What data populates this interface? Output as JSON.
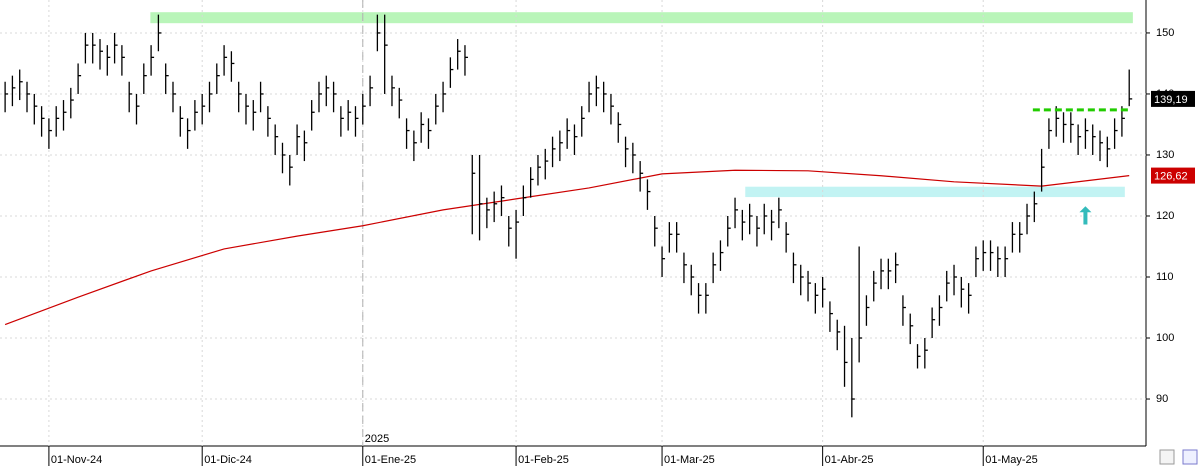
{
  "chart_data": {
    "type": "ohlc",
    "color": "#000000",
    "categories": [
      null,
      null,
      null,
      null,
      null,
      null,
      "01-Nov-24",
      null,
      null,
      null,
      null,
      null,
      null,
      null,
      null,
      null,
      null,
      null,
      null,
      null,
      null,
      null,
      null,
      null,
      null,
      null,
      null,
      "01-Dic-24",
      null,
      null,
      null,
      null,
      null,
      null,
      null,
      null,
      null,
      null,
      null,
      null,
      null,
      null,
      null,
      null,
      null,
      null,
      null,
      null,
      null,
      "01-Ene-25",
      null,
      null,
      null,
      null,
      null,
      null,
      null,
      null,
      null,
      null,
      null,
      null,
      null,
      null,
      null,
      null,
      null,
      null,
      null,
      null,
      "01-Feb-25",
      null,
      null,
      null,
      null,
      null,
      null,
      null,
      null,
      null,
      null,
      null,
      null,
      null,
      null,
      null,
      null,
      null,
      null,
      null,
      "01-Mar-25",
      null,
      null,
      null,
      null,
      null,
      null,
      null,
      null,
      null,
      null,
      null,
      null,
      null,
      null,
      null,
      null,
      null,
      null,
      null,
      null,
      null,
      "01-Abr-25",
      null,
      null,
      null,
      null,
      null,
      null,
      null,
      null,
      null,
      null,
      null,
      null,
      null,
      null,
      null,
      null,
      null,
      null,
      null,
      null,
      null,
      "01-May-25",
      null,
      null,
      null,
      null,
      null,
      null,
      null,
      null,
      null,
      null,
      null,
      null,
      null,
      null,
      null,
      null,
      null,
      null,
      null,
      null
    ],
    "high": [
      142,
      143,
      144,
      142,
      140,
      138,
      136,
      138,
      139,
      141,
      145,
      150,
      150,
      149,
      148,
      150,
      148,
      142,
      140,
      145,
      148,
      153,
      145,
      142,
      138,
      136,
      139,
      140,
      142,
      145,
      148,
      147,
      142,
      140,
      139,
      142,
      138,
      135,
      132,
      130,
      135,
      134,
      139,
      142,
      143,
      142,
      138,
      139,
      138,
      140,
      143,
      153,
      153,
      143,
      141,
      136,
      134,
      137,
      136,
      140,
      142,
      146,
      149,
      148,
      130,
      130,
      123,
      124,
      125,
      120,
      121,
      125,
      128,
      130,
      131,
      133,
      134,
      136,
      135,
      138,
      142,
      143,
      142,
      140,
      137,
      133,
      132,
      129,
      126,
      120,
      115,
      119,
      119,
      114,
      112,
      109,
      109,
      114,
      116,
      120,
      123,
      121,
      122,
      120,
      122,
      121,
      123,
      119,
      114,
      112,
      111,
      109,
      110,
      106,
      103,
      102,
      100,
      115,
      107,
      111,
      113,
      113,
      114,
      107,
      104,
      99,
      100,
      105,
      107,
      111,
      112,
      110,
      109,
      115,
      116,
      116,
      115,
      115,
      119,
      119,
      122,
      124,
      131,
      136,
      138,
      137,
      137,
      135,
      136,
      135,
      134,
      133,
      136,
      138,
      144
    ],
    "low": [
      137,
      138,
      139,
      137,
      135,
      133,
      131,
      133,
      134,
      136,
      140,
      145,
      145,
      144,
      143,
      145,
      143,
      137,
      135,
      140,
      143,
      147,
      140,
      137,
      133,
      131,
      134,
      135,
      137,
      140,
      143,
      142,
      137,
      135,
      134,
      137,
      133,
      130,
      127,
      125,
      130,
      129,
      134,
      137,
      138,
      137,
      133,
      134,
      133,
      135,
      138,
      147,
      140,
      138,
      136,
      131,
      129,
      132,
      131,
      135,
      137,
      141,
      144,
      143,
      117,
      116,
      118,
      119,
      120,
      115,
      113,
      120,
      123,
      125,
      126,
      128,
      129,
      131,
      130,
      133,
      137,
      138,
      137,
      135,
      132,
      128,
      127,
      124,
      121,
      115,
      110,
      114,
      114,
      109,
      107,
      104,
      104,
      109,
      111,
      115,
      118,
      116,
      117,
      115,
      117,
      116,
      118,
      114,
      109,
      107,
      106,
      104,
      105,
      101,
      98,
      92,
      87,
      96,
      102,
      106,
      108,
      108,
      109,
      102,
      99,
      95,
      95,
      100,
      102,
      106,
      107,
      105,
      104,
      110,
      111,
      111,
      110,
      110,
      114,
      114,
      117,
      119,
      124,
      131,
      133,
      132,
      132,
      130,
      131,
      130,
      129,
      128,
      131,
      133,
      138
    ],
    "close": [
      140,
      141,
      142,
      140,
      138,
      136,
      134,
      136,
      137,
      139,
      143,
      148,
      148,
      147,
      146,
      148,
      146,
      140,
      138,
      143,
      146,
      150,
      143,
      140,
      136,
      134,
      137,
      138,
      140,
      143,
      146,
      145,
      140,
      138,
      137,
      140,
      136,
      133,
      130,
      128,
      133,
      132,
      137,
      140,
      141,
      140,
      136,
      137,
      136,
      138,
      141,
      150,
      148,
      141,
      139,
      134,
      132,
      135,
      134,
      138,
      140,
      144,
      147,
      146,
      127,
      122,
      121,
      122,
      123,
      118,
      119,
      123,
      126,
      128,
      129,
      131,
      132,
      134,
      133,
      136,
      140,
      141,
      140,
      138,
      135,
      131,
      130,
      127,
      124,
      118,
      113,
      117,
      117,
      112,
      110,
      107,
      107,
      112,
      114,
      118,
      121,
      119,
      120,
      118,
      120,
      119,
      121,
      117,
      112,
      110,
      109,
      107,
      108,
      104,
      101,
      96,
      90,
      100,
      105,
      109,
      111,
      111,
      112,
      105,
      102,
      97,
      98,
      103,
      105,
      109,
      110,
      108,
      107,
      113,
      114,
      114,
      113,
      113,
      117,
      117,
      120,
      122,
      128,
      134,
      136,
      135,
      135,
      133,
      134,
      133,
      132,
      131,
      134,
      136,
      139.19
    ],
    "last_close_label": "139,19",
    "moving_average": {
      "color": "#cc0000",
      "x": [
        0,
        10,
        20,
        30,
        40,
        49,
        60,
        70,
        80,
        90,
        100,
        110,
        120,
        130,
        142,
        154
      ],
      "values": [
        102.2,
        106.7,
        111,
        114.6,
        116.7,
        118.4,
        121,
        122.8,
        124.6,
        126.9,
        127.5,
        127.4,
        126.6,
        125.6,
        124.9,
        126.62
      ],
      "value_label": "126,62"
    },
    "year_marker": {
      "index": 49,
      "label": "2025"
    },
    "xlim": [
      -0.7,
      156.3
    ],
    "ylim": [
      82.3,
      155.4
    ],
    "yticks": [
      90,
      100,
      110,
      120,
      130,
      140,
      150
    ],
    "grid": true,
    "bands": [
      {
        "ymin": 151.6,
        "ymax": 153.4,
        "xstart": 19.9,
        "xend": 154.5,
        "color": "#b9f5b9"
      },
      {
        "ymin": 123.1,
        "ymax": 124.8,
        "xstart": 101.4,
        "xend": 153.4,
        "color": "#c2f3f3"
      }
    ],
    "dashed_level": {
      "value": 137.4,
      "xstart": 140.8,
      "xend": 154.2,
      "color": "#22cc00"
    },
    "arrow": {
      "index": 148,
      "from": 118.6,
      "to": 121.6,
      "color": "#33bbbb"
    }
  }
}
